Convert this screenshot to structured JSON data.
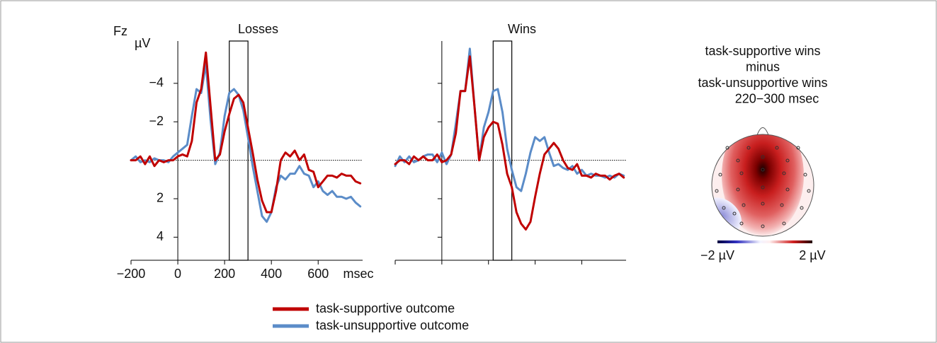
{
  "chart_data": [
    {
      "type": "line",
      "title": "Losses",
      "channel": "Fz",
      "ylabel": "µV",
      "xlabel": "msec",
      "x": [
        -200,
        -180,
        -160,
        -140,
        -120,
        -100,
        -80,
        -60,
        -40,
        -20,
        0,
        20,
        40,
        60,
        80,
        100,
        120,
        140,
        160,
        180,
        200,
        220,
        240,
        260,
        280,
        300,
        320,
        340,
        360,
        380,
        400,
        420,
        440,
        460,
        480,
        500,
        520,
        540,
        560,
        580,
        600,
        620,
        640,
        660,
        680,
        700,
        720,
        740,
        760,
        780
      ],
      "series": [
        {
          "name": "task-supportive outcome",
          "color": "#c00000",
          "values": [
            0,
            0,
            -0.2,
            0.2,
            -0.2,
            0.3,
            0,
            0.1,
            0,
            0,
            -0.2,
            -0.3,
            -0.2,
            -1,
            -3,
            -3.7,
            -5.6,
            -2.8,
            0,
            -0.3,
            -1.5,
            -2.4,
            -3.2,
            -3.4,
            -3,
            -1.7,
            -0.4,
            1,
            2.1,
            2.7,
            2.7,
            1.6,
            0,
            -0.4,
            -0.2,
            -0.5,
            0,
            -0.3,
            0.5,
            0.6,
            1.4,
            1.1,
            0.8,
            0.8,
            0.9,
            0.7,
            0.8,
            0.8,
            1.1,
            1.2
          ]
        },
        {
          "name": "task-unsupportive outcome",
          "color": "#5b8cc8",
          "values": [
            0,
            -0.2,
            0.1,
            0,
            0.1,
            -0.1,
            0,
            0,
            0.1,
            -0.2,
            -0.4,
            -0.6,
            -0.8,
            -2.3,
            -3.7,
            -3.5,
            -5,
            -2.1,
            0.2,
            -0.4,
            -2.3,
            -3.5,
            -3.7,
            -3.4,
            -2.6,
            -1.2,
            0.3,
            1.6,
            2.9,
            3.2,
            2.7,
            1.4,
            0.8,
            1,
            0.7,
            0.7,
            0.3,
            0.7,
            0.8,
            1.4,
            1.1,
            1.6,
            1.8,
            1.6,
            1.9,
            1.9,
            2,
            1.9,
            2.2,
            2.4
          ]
        }
      ],
      "window": [
        220,
        300
      ],
      "xlim": [
        -200,
        790
      ],
      "xticks": [
        {
          "value": -200,
          "label": "−200"
        },
        0,
        200,
        400,
        600
      ],
      "ylim": [
        -6.2,
        5.2
      ],
      "y_inverted": true,
      "yticks": [
        {
          "value": -4,
          "label": "−4"
        },
        {
          "value": -2,
          "label": "−2"
        },
        2,
        4
      ]
    },
    {
      "type": "line",
      "title": "Wins",
      "x": [
        -200,
        -180,
        -160,
        -140,
        -120,
        -100,
        -80,
        -60,
        -40,
        -20,
        0,
        20,
        40,
        60,
        80,
        100,
        120,
        140,
        160,
        180,
        200,
        220,
        240,
        260,
        280,
        300,
        320,
        340,
        360,
        380,
        400,
        420,
        440,
        460,
        480,
        500,
        520,
        540,
        560,
        580,
        600,
        620,
        640,
        660,
        680,
        700,
        720,
        740,
        760,
        780
      ],
      "series": [
        {
          "color": "#c00000",
          "values": [
            0.2,
            0,
            0,
            0.2,
            -0.2,
            0,
            -0.2,
            0,
            0,
            -0.3,
            0.1,
            0,
            -0.3,
            -1.4,
            -3.6,
            -3.6,
            -5.4,
            -2.8,
            0,
            -1.2,
            -1.7,
            -2,
            -1.9,
            -0.8,
            0.7,
            1.4,
            2.7,
            3.3,
            3.6,
            3.2,
            1.9,
            0.7,
            -0.3,
            -0.6,
            -0.9,
            -0.6,
            0,
            0.4,
            0.5,
            0.2,
            0.8,
            0.8,
            0.9,
            0.7,
            0.8,
            0.8,
            1,
            0.8,
            0.7,
            0.9
          ]
        },
        {
          "color": "#5b8cc8",
          "values": [
            0.3,
            -0.2,
            0.1,
            -0.2,
            0.1,
            0,
            -0.2,
            -0.3,
            -0.3,
            0.1,
            -0.4,
            0.2,
            -0.3,
            -1.9,
            -3.6,
            -3.6,
            -5.8,
            -2.8,
            0,
            -1.7,
            -2.5,
            -3.6,
            -3.7,
            -2.5,
            -0.6,
            0.5,
            1.4,
            1.6,
            0.7,
            -0.4,
            -1.2,
            -1,
            -1.2,
            -0.4,
            0.3,
            0.2,
            0.4,
            0.5,
            0.3,
            0.7,
            0.5,
            0.8,
            0.7,
            0.8,
            0.8,
            0.9,
            0.8,
            0.9,
            0.7,
            0.8
          ]
        }
      ],
      "window": [
        220,
        300
      ],
      "xlim": [
        -200,
        790
      ],
      "xticks": [
        -200,
        0,
        200,
        400,
        600
      ],
      "ylim": [
        -6.2,
        5.2
      ],
      "y_inverted": true,
      "yticks": [
        -4,
        -2,
        2,
        4
      ]
    }
  ],
  "topomap": {
    "title": [
      "task-supportive wins",
      "minus",
      "task-unsupportive wins",
      "220−300 msec"
    ],
    "colorbar": {
      "lim": [
        -2,
        2
      ],
      "ticks": [
        {
          "value": -2,
          "label": "−2 µV"
        },
        {
          "value": 2,
          "label": "2 µV"
        }
      ]
    }
  }
}
